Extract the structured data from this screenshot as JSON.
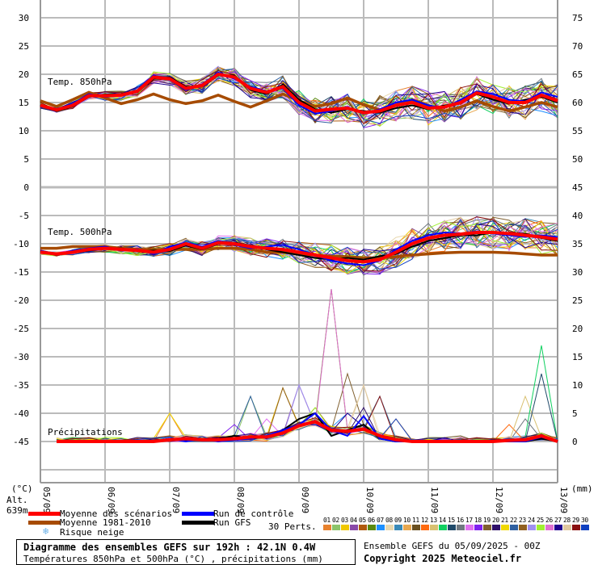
{
  "chart_data": {
    "type": "line",
    "title": "Diagramme des ensembles GEFS sur 192h : 42.1N 0.4W",
    "subtitle": "Températures 850hPa et 500hPa (°C) , précipitations (mm)",
    "run_info": "Ensemble GEFS du 05/09/2025 - 00Z",
    "copyright": "Copyright 2025 Meteociel.fr",
    "altitude": "Alt. 639m",
    "left_unit": "(°C)",
    "right_unit": "(mm)",
    "x_tick_labels": [
      "05/09",
      "06/09",
      "07/09",
      "08/09",
      "09/09",
      "10/09",
      "11/09",
      "12/09",
      "13/09"
    ],
    "x_step_hours": 6,
    "left_ticks": [
      30,
      25,
      20,
      15,
      10,
      5,
      0,
      -5,
      -10,
      -15,
      -20,
      -25,
      -30,
      -35,
      -40,
      -45
    ],
    "right_ticks": [
      75,
      70,
      65,
      60,
      55,
      50,
      45,
      40,
      35,
      30,
      25,
      20,
      15,
      10,
      5,
      0
    ],
    "ylim": [
      -45,
      30
    ],
    "panels": [
      {
        "label": "Temp. 850hPa",
        "mean": [
          14.5,
          13.7,
          14.5,
          16.2,
          16.2,
          16.3,
          17,
          19.5,
          19.2,
          17.5,
          18,
          20,
          19.5,
          17.5,
          16.8,
          17.8,
          15,
          13.5,
          13.8,
          14,
          13.2,
          13.5,
          14.5,
          15,
          14,
          14.2,
          15,
          16.7,
          16,
          15,
          15,
          16.3,
          15.3
        ],
        "climatology": [
          15.3,
          14.3,
          15.5,
          16.8,
          15.8,
          14.8,
          15.5,
          16.5,
          15.5,
          14.8,
          15.3,
          16.3,
          15.2,
          14.2,
          15.3,
          16.5,
          15.3,
          14.3,
          14.8,
          15.8,
          14.6,
          13.7,
          14.5,
          15.5,
          14.5,
          13.5,
          14.2,
          15.3,
          14.3,
          13.5,
          14.2,
          15,
          14.2
        ],
        "control": [
          14.3,
          13.8,
          14.8,
          16.5,
          16,
          16.2,
          17.2,
          19.8,
          19,
          17.2,
          18.2,
          20.3,
          19.2,
          17.8,
          17,
          17.5,
          14.5,
          13,
          13.5,
          14.2,
          13,
          13.8,
          15,
          15.5,
          14.5,
          14,
          15.5,
          17,
          16.5,
          15.5,
          15.2,
          16.8,
          16
        ],
        "gfs": [
          14.6,
          13.5,
          14.3,
          16,
          16.4,
          16.5,
          16.8,
          19.2,
          19.5,
          17.8,
          17.8,
          19.8,
          19.8,
          17.2,
          16.5,
          18.2,
          15.5,
          13.8,
          13.2,
          13.8,
          13.5,
          13.2,
          14,
          14.5,
          13.8,
          14.5,
          14.8,
          16.5,
          15.5,
          14.8,
          15.5,
          16,
          15
        ],
        "spread": [
          0.5,
          0.5,
          0.6,
          0.7,
          0.8,
          0.9,
          1,
          1.1,
          1.2,
          1.3,
          1.4,
          1.5,
          1.6,
          1.7,
          1.8,
          2,
          2.2,
          2.4,
          2.5,
          2.6,
          2.7,
          2.8,
          2.9,
          3,
          3,
          3,
          3,
          3,
          3,
          3,
          3,
          3,
          3
        ]
      },
      {
        "label": "Temp. 500hPa",
        "mean": [
          -11.5,
          -11.8,
          -11.5,
          -11,
          -10.8,
          -11,
          -11.2,
          -11.5,
          -11,
          -10,
          -10.8,
          -9.8,
          -10,
          -10.5,
          -10.8,
          -11,
          -11.5,
          -12,
          -12.5,
          -13,
          -13.2,
          -12.8,
          -11.5,
          -10,
          -9,
          -8.5,
          -8.3,
          -8,
          -8,
          -8.2,
          -8.5,
          -8.8,
          -9.2
        ],
        "climatology": [
          -10.8,
          -10.8,
          -10.5,
          -10.5,
          -10.5,
          -10.8,
          -11,
          -11,
          -11,
          -11,
          -11,
          -10.8,
          -10.8,
          -11,
          -11.5,
          -11.5,
          -11.8,
          -12,
          -12.2,
          -12.3,
          -12.5,
          -12.5,
          -12.3,
          -12,
          -11.8,
          -11.6,
          -11.5,
          -11.5,
          -11.5,
          -11.6,
          -11.8,
          -12,
          -12
        ],
        "control": [
          -11.6,
          -11.9,
          -11.2,
          -10.8,
          -10.5,
          -11.2,
          -11,
          -11.8,
          -10.5,
          -9.8,
          -10.5,
          -9.5,
          -10.2,
          -10.8,
          -10.5,
          -10.2,
          -11,
          -12,
          -13,
          -13.5,
          -13.8,
          -13,
          -11,
          -9.5,
          -8.5,
          -8,
          -8.2,
          -7.8,
          -8.2,
          -8.5,
          -8.8,
          -8.5,
          -8.8
        ],
        "gfs": [
          -11.4,
          -11.7,
          -11.6,
          -11.2,
          -10.9,
          -10.8,
          -11.4,
          -11.2,
          -11.3,
          -10.3,
          -11,
          -10,
          -9.8,
          -10.3,
          -11,
          -11.5,
          -12,
          -12.5,
          -12.8,
          -12.5,
          -12.8,
          -12.2,
          -11.8,
          -10.5,
          -9.5,
          -9,
          -8.5,
          -8.5,
          -8,
          -8.3,
          -8.2,
          -9,
          -9.5
        ],
        "spread": [
          0.4,
          0.4,
          0.5,
          0.6,
          0.7,
          0.8,
          0.9,
          1,
          1.1,
          1.2,
          1.3,
          1.4,
          1.5,
          1.6,
          1.7,
          1.8,
          2,
          2.2,
          2.3,
          2.4,
          2.5,
          2.6,
          2.7,
          2.8,
          2.9,
          3,
          3,
          3,
          3,
          3,
          3,
          3,
          3
        ]
      },
      {
        "label": "Précipitations",
        "mean": [
          null,
          0,
          0,
          0,
          0,
          0,
          0,
          0,
          0.3,
          0.5,
          0.3,
          0.3,
          0.5,
          0.8,
          0.8,
          1.5,
          2.8,
          3.5,
          2,
          1.8,
          2.2,
          1,
          0.3,
          0,
          0,
          0,
          0,
          0,
          0,
          0.2,
          0.3,
          1,
          0
        ],
        "control": [
          null,
          0,
          0,
          0,
          0,
          0,
          0,
          0,
          0.5,
          0,
          0.5,
          0,
          0.3,
          0.5,
          1,
          2,
          3,
          5,
          2,
          1,
          4.5,
          0.5,
          0,
          0,
          0,
          0,
          0,
          0,
          0,
          0,
          0,
          0.8,
          0
        ],
        "gfs": [
          null,
          0,
          0,
          0,
          0,
          0,
          0,
          0,
          0.5,
          0.2,
          0.3,
          0.5,
          1,
          0.5,
          0.8,
          2,
          4,
          5,
          1,
          2,
          3,
          0.5,
          0,
          0,
          0,
          0,
          0,
          0,
          0,
          0,
          0,
          0.5,
          0
        ],
        "member_peaks": [
          [
            8,
            5
          ],
          [
            13,
            8
          ],
          [
            15,
            9.5
          ],
          [
            16,
            10
          ],
          [
            17,
            6
          ],
          [
            18,
            27
          ],
          [
            19,
            5
          ],
          [
            20,
            10
          ],
          [
            21,
            8
          ],
          [
            22,
            4
          ],
          [
            26,
            1
          ],
          [
            29,
            3
          ],
          [
            30,
            8
          ],
          [
            31,
            17
          ],
          [
            31,
            12
          ],
          [
            30,
            4
          ],
          [
            14,
            4
          ],
          [
            12,
            3
          ],
          [
            19,
            12
          ],
          [
            20,
            6
          ]
        ]
      }
    ],
    "legend": [
      {
        "label": "Moyenne des scénarios",
        "color": "#ff0000"
      },
      {
        "label": "Moyenne 1981-2010",
        "color": "#a64b00"
      },
      {
        "label": "Risque neige",
        "color": "#6ab0e8"
      },
      {
        "label": "Run de contrôle",
        "color": "#0000ff"
      },
      {
        "label": "Run GFS",
        "color": "#000000"
      }
    ],
    "perts_label": "30 Perts.",
    "member_numbers": [
      "01",
      "02",
      "03",
      "04",
      "05",
      "06",
      "07",
      "08",
      "09",
      "10",
      "11",
      "12",
      "13",
      "14",
      "15",
      "16",
      "17",
      "18",
      "19",
      "20",
      "21",
      "22",
      "23",
      "24",
      "25",
      "26",
      "27",
      "28",
      "29",
      "30"
    ],
    "member_colors": [
      "#e8822e",
      "#8cc46a",
      "#f0c800",
      "#8a4aa8",
      "#b05a0e",
      "#5a8a10",
      "#1e90ff",
      "#e8d8b0",
      "#3a8ab8",
      "#e8a850",
      "#6a5020",
      "#ff6a10",
      "#d8c070",
      "#10d060",
      "#204a6a",
      "#707880",
      "#e070f0",
      "#8020f0",
      "#806030",
      "#30106a",
      "#f0d800",
      "#3060a0",
      "#906020",
      "#a090f0",
      "#a0f030",
      "#e070d0",
      "#200090",
      "#e0c8a0",
      "#8a1010",
      "#1040c0"
    ],
    "grid": true
  }
}
